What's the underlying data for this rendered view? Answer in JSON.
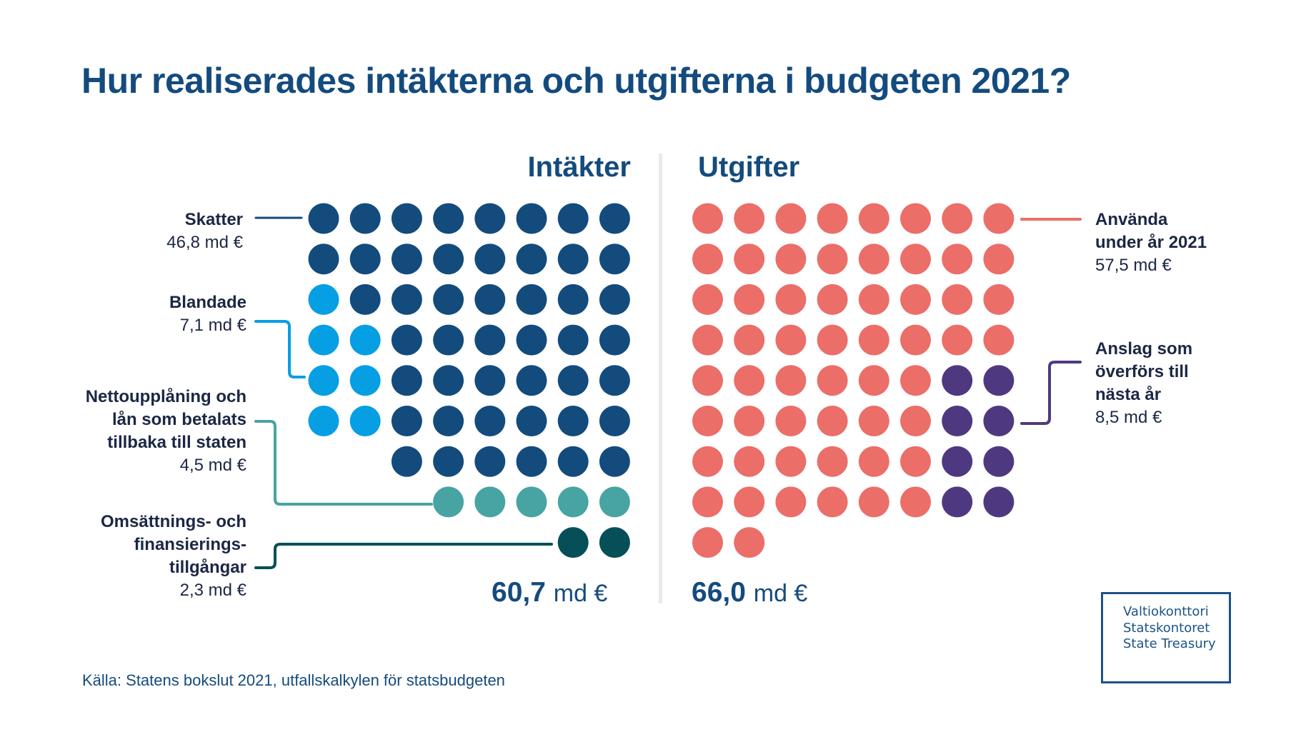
{
  "title": "Hur realiserades intäkterna och utgifterna i budgeten 2021?",
  "source": "Källa: Statens bokslut 2021, utfallskalkylen för statsbudgeten",
  "logo": {
    "lines": [
      "Valtiokonttori",
      "Statskontoret",
      "State Treasury"
    ],
    "color": "#1d5289"
  },
  "chart_data": {
    "type": "waffle",
    "title": "Hur realiserades intäkterna och utgifterna i budgeten 2021?",
    "unit": "md €",
    "dot_value": "≈1 md €",
    "panels": [
      {
        "name": "Intäkter",
        "total": 60.7,
        "total_label": "60,7",
        "unit_label": "md €",
        "series": [
          {
            "name": "Skatter",
            "value": 46.8,
            "value_label": "46,8 md €",
            "dots": 47,
            "color": "#134b7d"
          },
          {
            "name": "Blandade",
            "value": 7.1,
            "value_label": "7,1 md €",
            "dots": 7,
            "color": "#069fe3"
          },
          {
            "name": "Nettoupplåning och lån som betalats tillbaka till staten",
            "name_lines": [
              "Nettoupplåning och",
              "lån som betalats",
              "tillbaka till staten"
            ],
            "value": 4.5,
            "value_label": "4,5 md €",
            "dots": 5,
            "color": "#47a4a2"
          },
          {
            "name": "Omsättnings- och finansieringstillgångar",
            "name_lines": [
              "Omsättnings- och",
              "finansierings-",
              "tillgångar"
            ],
            "value": 2.3,
            "value_label": "2,3 md €",
            "dots": 2,
            "color": "#064f58"
          }
        ],
        "rows": [
          [
            0,
            0,
            0,
            0,
            0,
            0,
            0,
            0
          ],
          [
            0,
            0,
            0,
            0,
            0,
            0,
            0,
            0
          ],
          [
            1,
            0,
            0,
            0,
            0,
            0,
            0,
            0
          ],
          [
            1,
            1,
            0,
            0,
            0,
            0,
            0,
            0
          ],
          [
            1,
            1,
            0,
            0,
            0,
            0,
            0,
            0
          ],
          [
            1,
            1,
            0,
            0,
            0,
            0,
            0,
            0
          ],
          [
            -1,
            -1,
            0,
            0,
            0,
            0,
            0,
            0
          ],
          [
            -1,
            -1,
            -1,
            2,
            2,
            2,
            2,
            2
          ],
          [
            -1,
            -1,
            -1,
            -1,
            -1,
            -1,
            3,
            3
          ]
        ]
      },
      {
        "name": "Utgifter",
        "total": 66.0,
        "total_label": "66,0",
        "unit_label": "md €",
        "series": [
          {
            "name": "Använda under år 2021",
            "name_lines": [
              "Använda",
              "under år 2021"
            ],
            "value": 57.5,
            "value_label": "57,5 md €",
            "dots": 58,
            "color": "#eb6e69"
          },
          {
            "name": "Anslag som överförs till nästa år",
            "name_lines": [
              "Anslag som",
              "överförs till",
              "nästa år"
            ],
            "value": 8.5,
            "value_label": "8,5 md €",
            "dots": 8,
            "color": "#4e3980"
          }
        ],
        "rows": [
          [
            0,
            0,
            0,
            0,
            0,
            0,
            0,
            0
          ],
          [
            0,
            0,
            0,
            0,
            0,
            0,
            0,
            0
          ],
          [
            0,
            0,
            0,
            0,
            0,
            0,
            0,
            0
          ],
          [
            0,
            0,
            0,
            0,
            0,
            0,
            0,
            0
          ],
          [
            0,
            0,
            0,
            0,
            0,
            0,
            1,
            1
          ],
          [
            0,
            0,
            0,
            0,
            0,
            0,
            1,
            1
          ],
          [
            0,
            0,
            0,
            0,
            0,
            0,
            1,
            1
          ],
          [
            0,
            0,
            0,
            0,
            0,
            0,
            1,
            1
          ],
          [
            0,
            0,
            -1,
            -1,
            -1,
            -1,
            -1,
            -1
          ]
        ]
      }
    ]
  }
}
